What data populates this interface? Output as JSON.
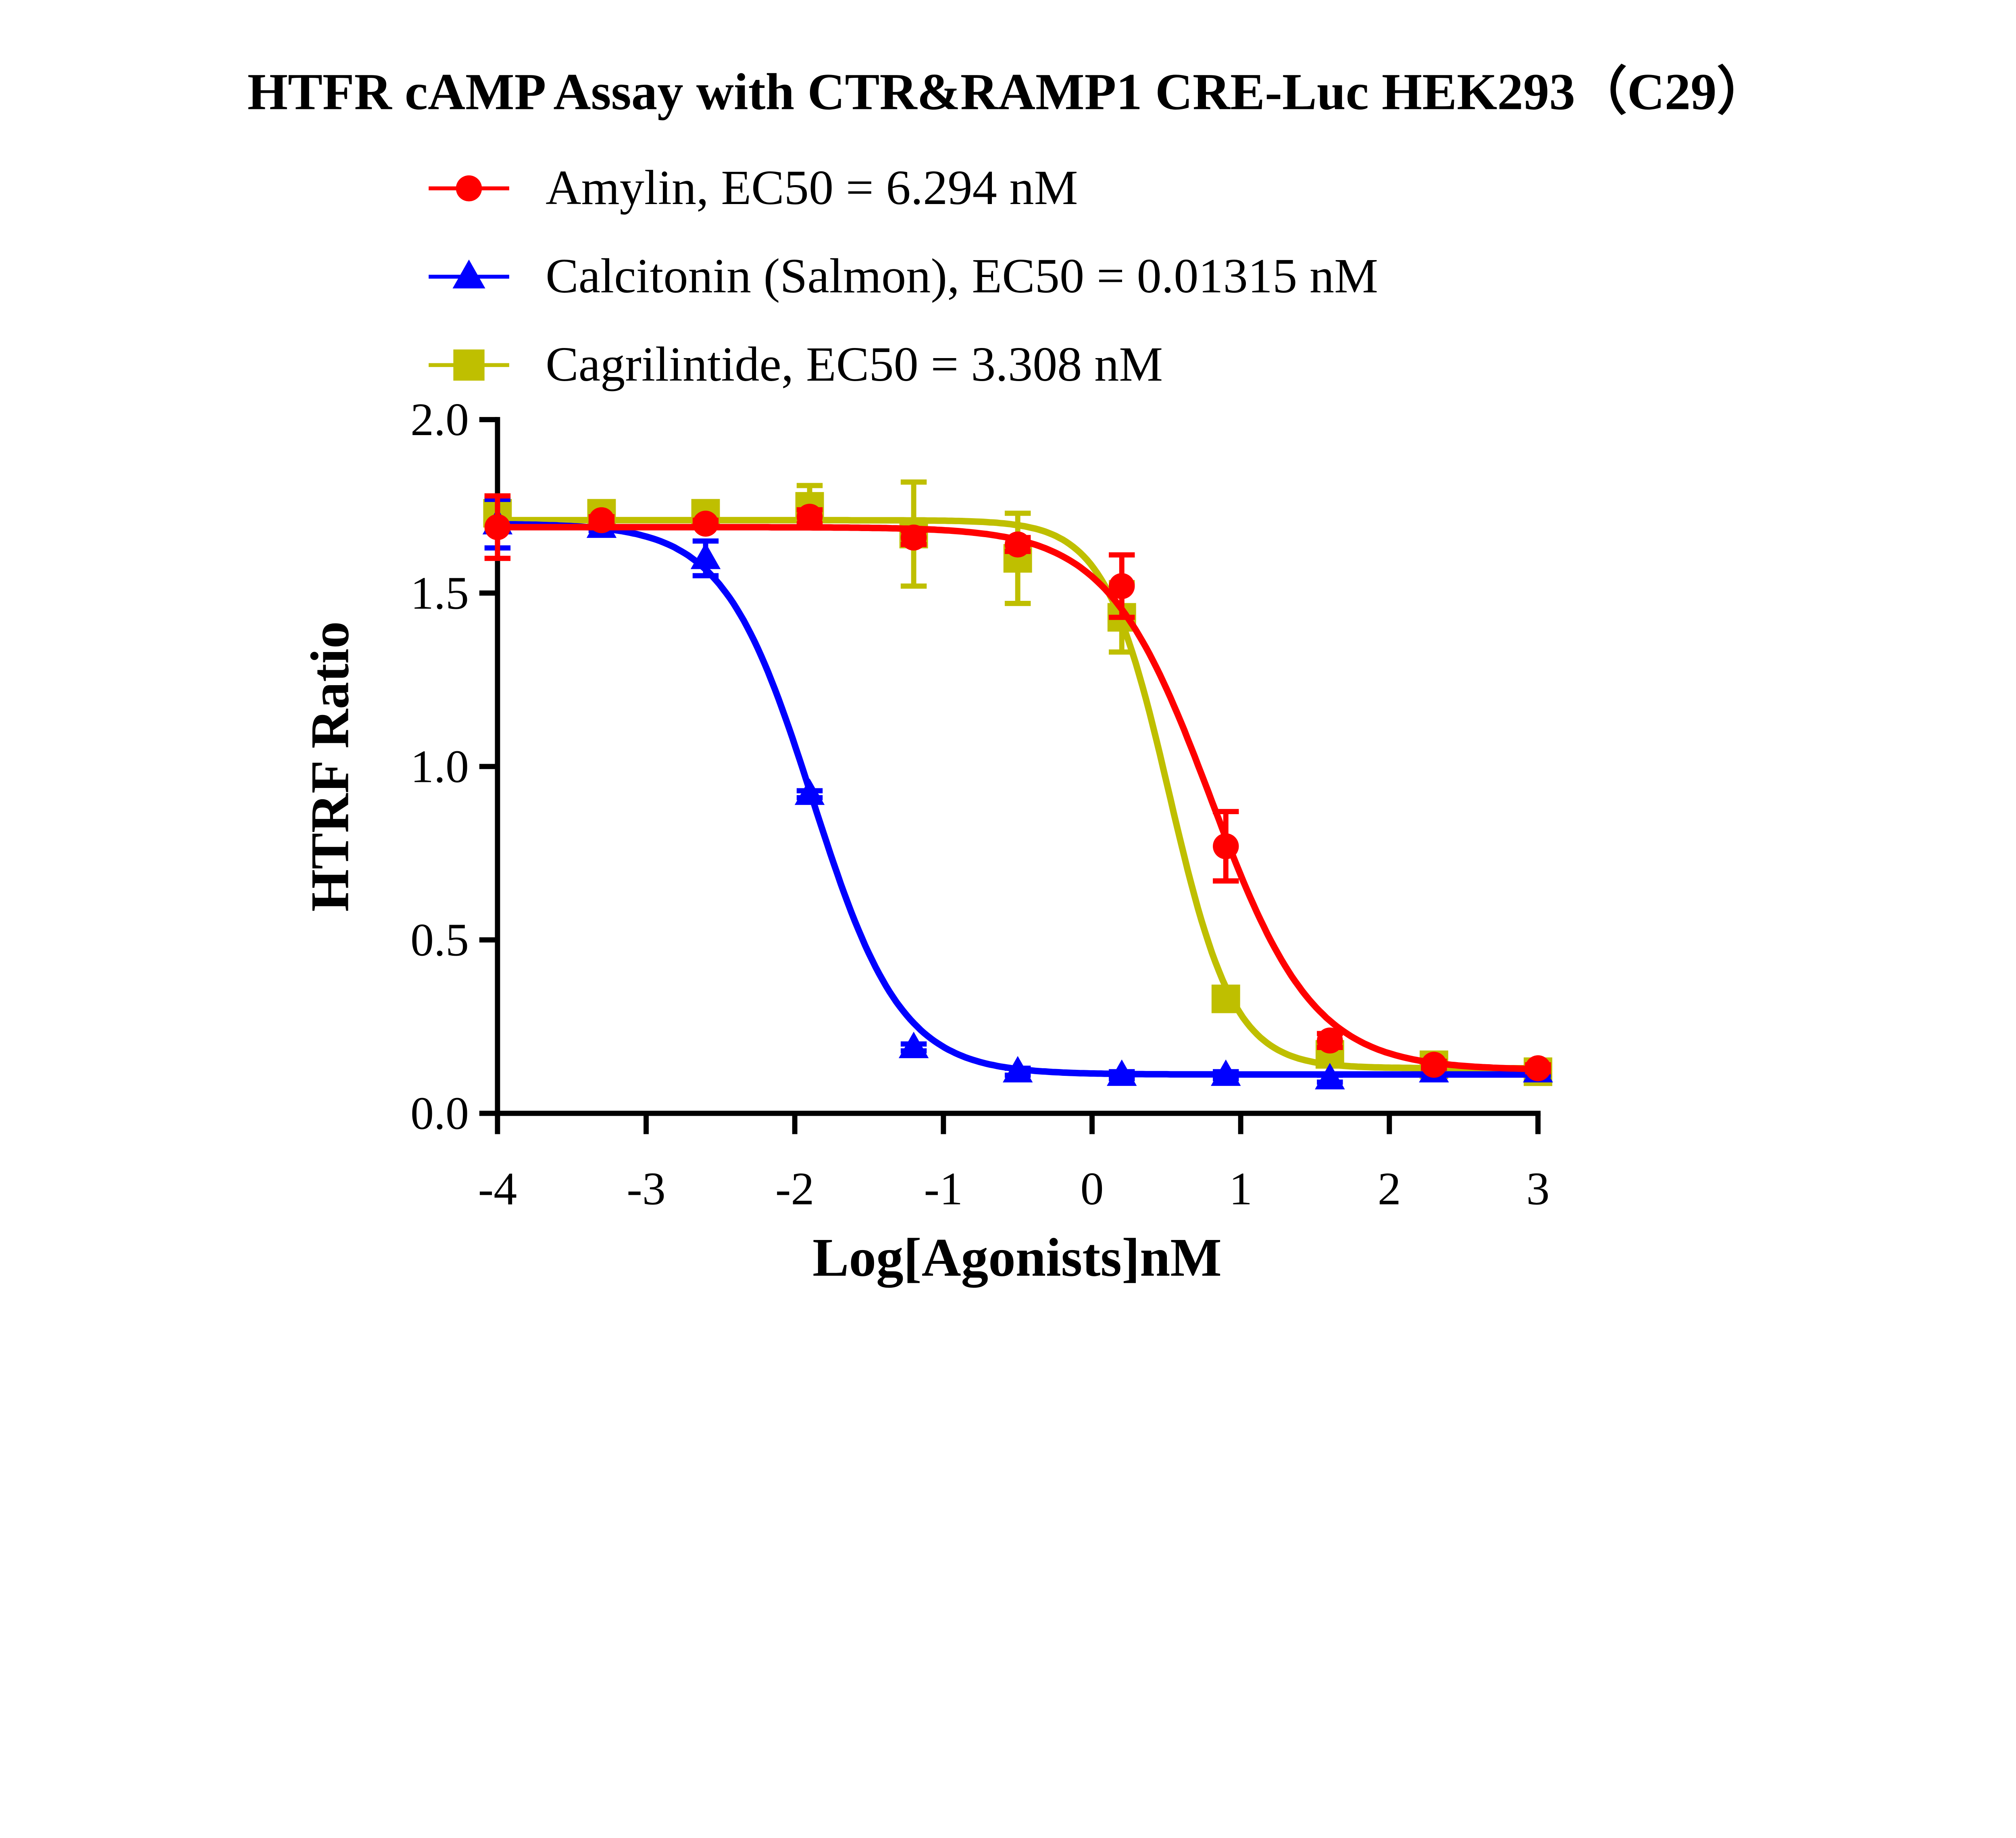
{
  "chart_data": {
    "type": "line",
    "title": "HTFR cAMP Assay with CTR&RAMP1 CRE-Luc HEK293（C29）",
    "xlabel": "Log[Agonists]nM",
    "ylabel": "HTRF Ratio",
    "xlim": [
      -4,
      3
    ],
    "ylim": [
      0,
      2
    ],
    "xticks": [
      "-4",
      "-3",
      "-2",
      "-1",
      "0",
      "1",
      "2",
      "3"
    ],
    "yticks": [
      "0.0",
      "0.5",
      "1.0",
      "1.5",
      "2.0"
    ],
    "grid": false,
    "legend_position": "top",
    "x": [
      -4,
      -3.3,
      -2.6,
      -1.9,
      -1.2,
      -0.5,
      0.2,
      0.9,
      1.6,
      2.3,
      3
    ],
    "series": [
      {
        "name": "Amylin,  EC50 = 6.294 nM",
        "color": "#ff0000",
        "marker": "circle",
        "values": [
          1.69,
          1.71,
          1.7,
          1.72,
          1.66,
          1.64,
          1.52,
          0.77,
          0.21,
          0.14,
          0.13
        ],
        "errors": [
          0.09,
          0.01,
          0.01,
          0.02,
          0.02,
          0.02,
          0.09,
          0.1,
          0.02,
          0.01,
          0.01
        ],
        "fit": {
          "top": 1.69,
          "bottom": 0.125,
          "logEC50": 0.799,
          "hill": -1.25
        }
      },
      {
        "name": "Calcitonin (Salmon),  EC50 = 0.01315 nM",
        "color": "#0000ff",
        "marker": "triangle",
        "values": [
          1.7,
          1.69,
          1.6,
          0.92,
          0.19,
          0.12,
          0.11,
          0.11,
          0.1,
          0.12,
          0.12
        ],
        "errors": [
          0.07,
          0.01,
          0.05,
          0.01,
          0.01,
          0.01,
          0.01,
          0.01,
          0.01,
          0.01,
          0.01
        ],
        "fit": {
          "top": 1.7,
          "bottom": 0.112,
          "logEC50": -1.881,
          "hill": -1.45
        }
      },
      {
        "name": "Cagrilintide,  EC50 = 3.308 nM",
        "color": "#bfbf00",
        "marker": "square",
        "values": [
          1.73,
          1.73,
          1.73,
          1.75,
          1.67,
          1.6,
          1.43,
          0.33,
          0.17,
          0.14,
          0.12
        ],
        "errors": [
          0.05,
          0.02,
          0.02,
          0.06,
          0.15,
          0.13,
          0.1,
          0.02,
          0.02,
          0.02,
          0.02
        ],
        "fit": {
          "top": 1.71,
          "bottom": 0.13,
          "logEC50": 0.52,
          "hill": -2.0
        }
      }
    ]
  }
}
